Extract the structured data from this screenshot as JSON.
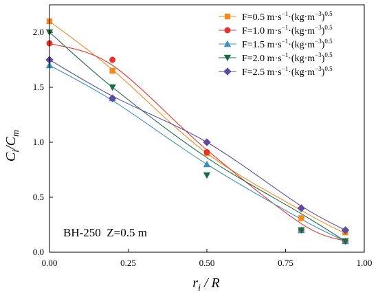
{
  "chart_data": {
    "type": "scatter",
    "title": "",
    "xlabel": {
      "main": "r",
      "sub": "i",
      "rest": " / R"
    },
    "ylabel": {
      "main": "C",
      "sub": "i",
      "mid": "/C",
      "sub2": "m"
    },
    "xlim": [
      0,
      1
    ],
    "ylim": [
      0,
      2.25
    ],
    "xticks": [
      0,
      0.25,
      0.5,
      0.75,
      1.0
    ],
    "xtick_labels": [
      "0.00",
      "0.25",
      "0.50",
      "0.75",
      "1.00"
    ],
    "yticks": [
      0,
      0.5,
      1.0,
      1.5,
      2.0
    ],
    "ytick_labels": [
      "0.0",
      "0.5",
      "1.0",
      "1.5",
      "2.0"
    ],
    "grid": false,
    "legend_position": "top-right",
    "annotation": "BH-250  Z=0.5 m",
    "series": [
      {
        "name": "F=0.5 m·s⁻¹·(kg·m⁻³)⁰·⁵",
        "legend": {
          "a": "F=0.5 m·s",
          "s1": "−1",
          "b": "·(kg·m",
          "s2": "−3",
          "c": ")",
          "s3": "0.5"
        },
        "color": "#F28A1E",
        "marker": "square",
        "x": [
          0,
          0.2,
          0.5,
          0.8,
          0.94
        ],
        "y": [
          2.1,
          1.65,
          0.9,
          0.31,
          0.18
        ],
        "curve_y": [
          2.1,
          1.66,
          0.9,
          0.38,
          0.17
        ]
      },
      {
        "name": "F=1.0 m·s⁻¹·(kg·m⁻³)⁰·⁵",
        "legend": {
          "a": "F=1.0 m·s",
          "s1": "−1",
          "b": "·(kg·m",
          "s2": "−3",
          "c": ")",
          "s3": "0.5"
        },
        "color": "#E8312B",
        "marker": "circle",
        "x": [
          0,
          0.2,
          0.5,
          0.8,
          0.94
        ],
        "y": [
          1.9,
          1.75,
          0.91,
          0.2,
          0.1
        ],
        "curve_y": [
          1.9,
          1.7,
          0.93,
          0.26,
          0.1
        ]
      },
      {
        "name": "F=1.5 m·s⁻¹·(kg·m⁻³)⁰·⁵",
        "legend": {
          "a": "F=1.5 m·s",
          "s1": "−1",
          "b": "·(kg·m",
          "s2": "−3",
          "c": ")",
          "s3": "0.5"
        },
        "color": "#3C8FC2",
        "marker": "triangle-up",
        "x": [
          0,
          0.2,
          0.5,
          0.8,
          0.94
        ],
        "y": [
          1.7,
          1.4,
          0.8,
          0.2,
          0.1
        ],
        "curve_y": [
          1.7,
          1.38,
          0.8,
          0.3,
          0.1
        ]
      },
      {
        "name": "F=2.0 m·s⁻¹·(kg·m⁻³)⁰·⁵",
        "legend": {
          "a": "F=2.0 m·s",
          "s1": "−1",
          "b": "·(kg·m",
          "s2": "−3",
          "c": ")",
          "s3": "0.5"
        },
        "color": "#1E6B4A",
        "marker": "triangle-down",
        "x": [
          0,
          0.2,
          0.5,
          0.8,
          0.94
        ],
        "y": [
          2.0,
          1.5,
          0.7,
          0.2,
          0.1
        ],
        "curve_y": [
          2.0,
          1.5,
          0.86,
          0.35,
          0.1
        ]
      },
      {
        "name": "F=2.5 m·s⁻¹·(kg·m⁻³)⁰·⁵",
        "legend": {
          "a": "F=2.5 m·s",
          "s1": "−1",
          "b": "·(kg·m",
          "s2": "−3",
          "c": ")",
          "s3": "0.5"
        },
        "color": "#5B4C9E",
        "marker": "diamond",
        "x": [
          0,
          0.2,
          0.5,
          0.8,
          0.94
        ],
        "y": [
          1.75,
          1.4,
          1.0,
          0.4,
          0.2
        ],
        "curve_y": [
          1.75,
          1.42,
          1.0,
          0.42,
          0.2
        ]
      }
    ]
  }
}
